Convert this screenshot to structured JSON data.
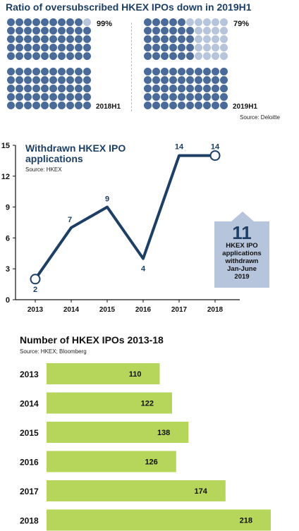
{
  "waffle": {
    "title": "Ratio of oversubscribed HKEX IPOs down in 2019H1",
    "source": "Source: Deloitte",
    "panels": [
      {
        "period": "2018H1",
        "percent_label": "99%",
        "value": 99
      },
      {
        "period": "2019H1",
        "percent_label": "79%",
        "value": 79
      }
    ],
    "colors": {
      "filled": "#4a6a99",
      "empty": "#b6c4dc"
    }
  },
  "withdrawn": {
    "title_line1": "Withdrawn HKEX IPO",
    "title_line2": "applications",
    "source": "Source: HKEX",
    "callout": {
      "number": "11",
      "line1": "HKEX IPO",
      "line2": "applications",
      "line3": "withdrawn",
      "line4": "Jan-June",
      "line5": "2019"
    },
    "colors": {
      "line": "#1d3f66",
      "callout_bg": "#b6c4dc"
    }
  },
  "ipos": {
    "title": "Number of HKEX IPOs 2013-18",
    "source": "Source: HKEX; Bloomberg",
    "colors": {
      "bar": "#b5d65a"
    }
  },
  "chart_data": [
    {
      "type": "waffle",
      "title": "Ratio of oversubscribed HKEX IPOs down in 2019H1",
      "categories": [
        "2018H1",
        "2019H1"
      ],
      "values": [
        99,
        79
      ],
      "unit": "%"
    },
    {
      "type": "line",
      "title": "Withdrawn HKEX IPO applications",
      "x": [
        "2013",
        "2014",
        "2015",
        "2016",
        "2017",
        "2018"
      ],
      "values": [
        2,
        7,
        9,
        4,
        14,
        14
      ],
      "labels": [
        "2",
        "7",
        "9",
        "4",
        "14",
        "14"
      ],
      "yticks": [
        "0",
        "3",
        "6",
        "9",
        "12",
        "15"
      ],
      "ylim": [
        0,
        15
      ],
      "grid": false
    },
    {
      "type": "bar",
      "orientation": "horizontal",
      "title": "Number of HKEX IPOs 2013-18",
      "categories": [
        "2013",
        "2014",
        "2015",
        "2016",
        "2017",
        "2018"
      ],
      "values": [
        110,
        122,
        138,
        126,
        174,
        218
      ],
      "labels": [
        "110",
        "122",
        "138",
        "126",
        "174",
        "218"
      ]
    }
  ]
}
